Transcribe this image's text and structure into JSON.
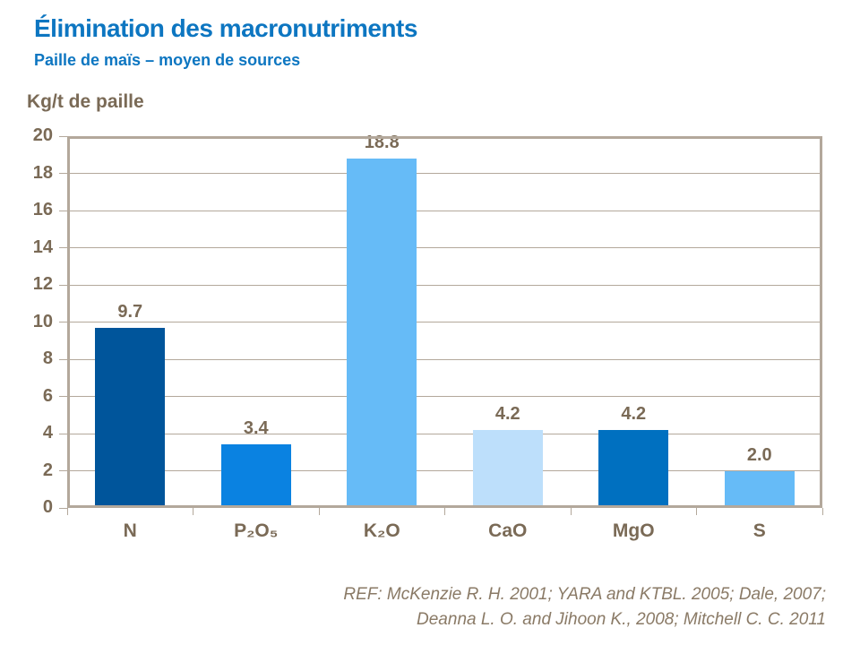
{
  "header": {
    "title": "Élimination des macronutriments",
    "subtitle": "Paille de maïs – moyen de sources"
  },
  "axis_title": "Kg/t de paille",
  "footer": {
    "line1": "REF: McKenzie R. H. 2001; YARA and KTBL. 2005; Dale, 2007;",
    "line2": "Deanna L. O. and Jihoon K.,  2008; Mitchell C. C. 2011"
  },
  "colors": {
    "title_text": "#0d76c1",
    "axis_text": "#7a6a56",
    "value_text": "#7a6a56",
    "grid_line": "#b3a89b",
    "footer_text": "#8a7a66"
  },
  "chart_data": {
    "type": "bar",
    "title": "Élimination des macronutriments",
    "subtitle": "Paille de maïs – moyen de sources",
    "categories": [
      "N",
      "P₂O₅",
      "K₂O",
      "CaO",
      "MgO",
      "S"
    ],
    "values": [
      9.7,
      3.4,
      18.8,
      4.2,
      4.2,
      2.0
    ],
    "value_labels": [
      "9.7",
      "3.4",
      "18.8",
      "4.2",
      "4.2",
      "2.0"
    ],
    "bar_colors": [
      "#00559b",
      "#0a82e1",
      "#66bbf7",
      "#bddffb",
      "#0070c0",
      "#66bbf7"
    ],
    "xlabel": "",
    "ylabel": "Kg/t de paille",
    "ylim": [
      0,
      20
    ],
    "ytick_step": 2,
    "grid": true,
    "legend": false
  }
}
